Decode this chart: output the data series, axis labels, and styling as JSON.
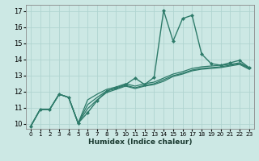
{
  "xlabel": "Humidex (Indice chaleur)",
  "xlim": [
    -0.5,
    23.5
  ],
  "ylim": [
    9.7,
    17.4
  ],
  "yticks": [
    10,
    11,
    12,
    13,
    14,
    15,
    16,
    17
  ],
  "xticks": [
    0,
    1,
    2,
    3,
    4,
    5,
    6,
    7,
    8,
    9,
    10,
    11,
    12,
    13,
    14,
    15,
    16,
    17,
    18,
    19,
    20,
    21,
    22,
    23
  ],
  "bg_color": "#cce8e4",
  "grid_color": "#b0d4d0",
  "line_color": "#2e7b6a",
  "lines": [
    {
      "x": [
        0,
        1,
        2,
        3,
        4,
        5,
        6,
        7,
        8,
        9,
        10,
        11,
        12,
        13,
        14,
        15,
        16,
        17,
        18,
        19,
        20,
        21,
        22,
        23
      ],
      "y": [
        9.85,
        10.9,
        10.9,
        11.85,
        11.65,
        10.05,
        10.7,
        11.45,
        12.05,
        12.25,
        12.45,
        12.85,
        12.45,
        12.9,
        17.05,
        15.15,
        16.55,
        16.75,
        14.35,
        13.75,
        13.65,
        13.8,
        13.95,
        13.5
      ],
      "marker": "D",
      "markersize": 2.0,
      "linewidth": 1.0
    },
    {
      "x": [
        0,
        1,
        2,
        3,
        4,
        5,
        6,
        7,
        8,
        9,
        10,
        11,
        12,
        13,
        14,
        15,
        16,
        17,
        18,
        19,
        20,
        21,
        22,
        23
      ],
      "y": [
        9.85,
        10.9,
        10.9,
        11.85,
        11.65,
        10.05,
        11.5,
        11.85,
        12.15,
        12.3,
        12.5,
        12.35,
        12.5,
        12.6,
        12.85,
        13.1,
        13.25,
        13.45,
        13.55,
        13.6,
        13.65,
        13.7,
        13.8,
        13.5
      ],
      "marker": null,
      "markersize": 0,
      "linewidth": 0.9
    },
    {
      "x": [
        0,
        1,
        2,
        3,
        4,
        5,
        6,
        7,
        8,
        9,
        10,
        11,
        12,
        13,
        14,
        15,
        16,
        17,
        18,
        19,
        20,
        21,
        22,
        23
      ],
      "y": [
        9.85,
        10.9,
        10.9,
        11.85,
        11.65,
        10.05,
        11.2,
        11.65,
        12.05,
        12.2,
        12.4,
        12.25,
        12.4,
        12.5,
        12.75,
        13.0,
        13.15,
        13.35,
        13.45,
        13.5,
        13.55,
        13.65,
        13.75,
        13.45
      ],
      "marker": null,
      "markersize": 0,
      "linewidth": 0.9
    },
    {
      "x": [
        0,
        1,
        2,
        3,
        4,
        5,
        6,
        7,
        8,
        9,
        10,
        11,
        12,
        13,
        14,
        15,
        16,
        17,
        18,
        19,
        20,
        21,
        22,
        23
      ],
      "y": [
        9.85,
        10.9,
        10.9,
        11.85,
        11.65,
        10.05,
        10.95,
        11.5,
        11.95,
        12.15,
        12.35,
        12.2,
        12.35,
        12.45,
        12.65,
        12.95,
        13.1,
        13.3,
        13.4,
        13.45,
        13.5,
        13.6,
        13.7,
        13.4
      ],
      "marker": null,
      "markersize": 0,
      "linewidth": 0.9
    }
  ]
}
